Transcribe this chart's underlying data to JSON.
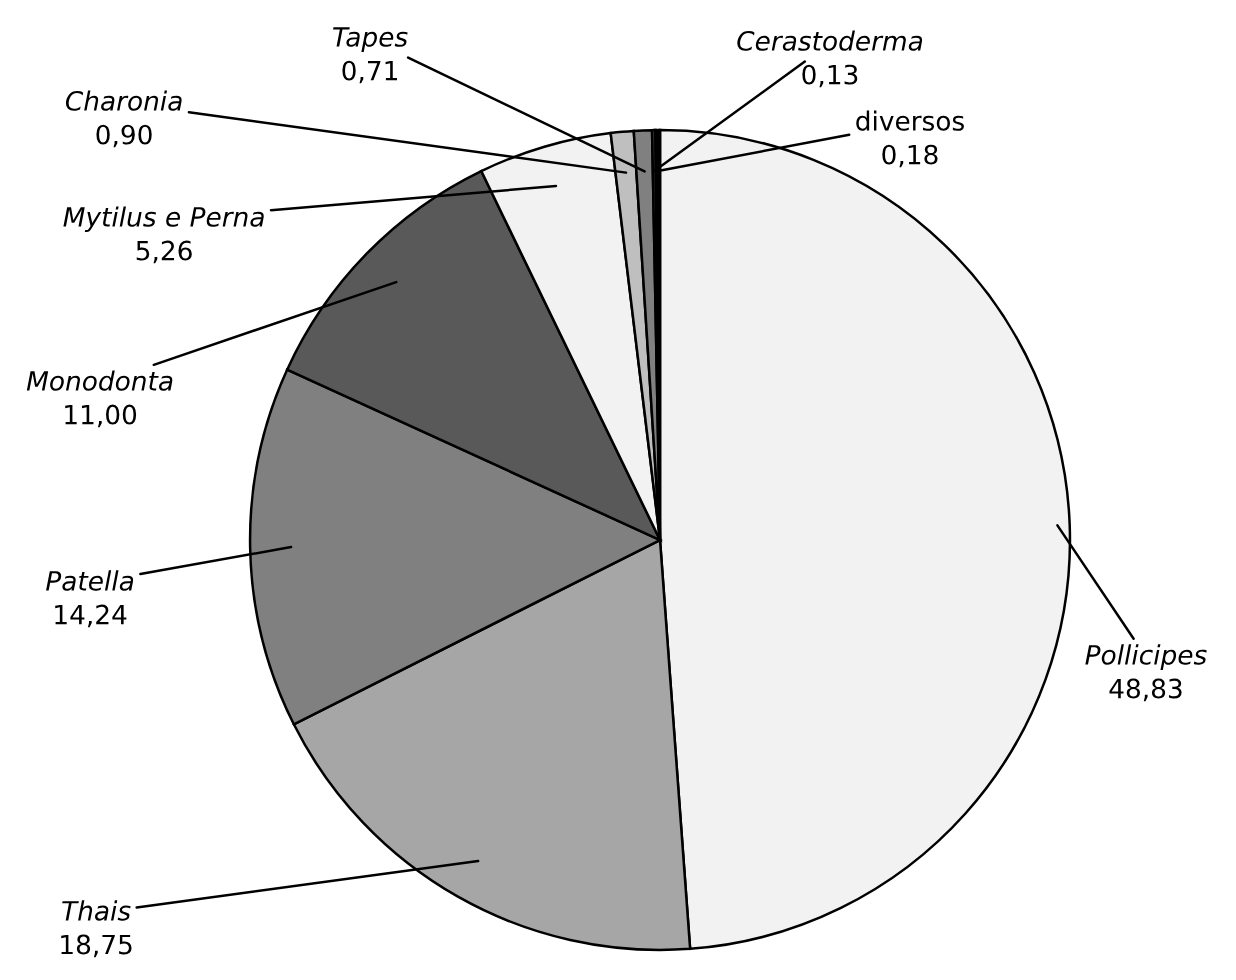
{
  "chart_data": {
    "type": "pie",
    "categories": [
      "Pollicipes",
      "Thais",
      "Patella",
      "Monodonta",
      "Mytilus e Perna",
      "Charonia",
      "Tapes",
      "Cerastoderma",
      "diversos"
    ],
    "values": [
      48.83,
      18.75,
      14.24,
      11.0,
      5.26,
      0.9,
      0.71,
      0.13,
      0.18
    ],
    "value_labels": [
      "48,83",
      "18,75",
      "14,24",
      "11,00",
      "5,26",
      "0,90",
      "0,71",
      "0,13",
      "0,18"
    ],
    "colors": [
      "#f2f2f2",
      "#a6a6a6",
      "#808080",
      "#595959",
      "#f2f2f2",
      "#bfbfbf",
      "#808080",
      "#404040",
      "#000000"
    ]
  }
}
